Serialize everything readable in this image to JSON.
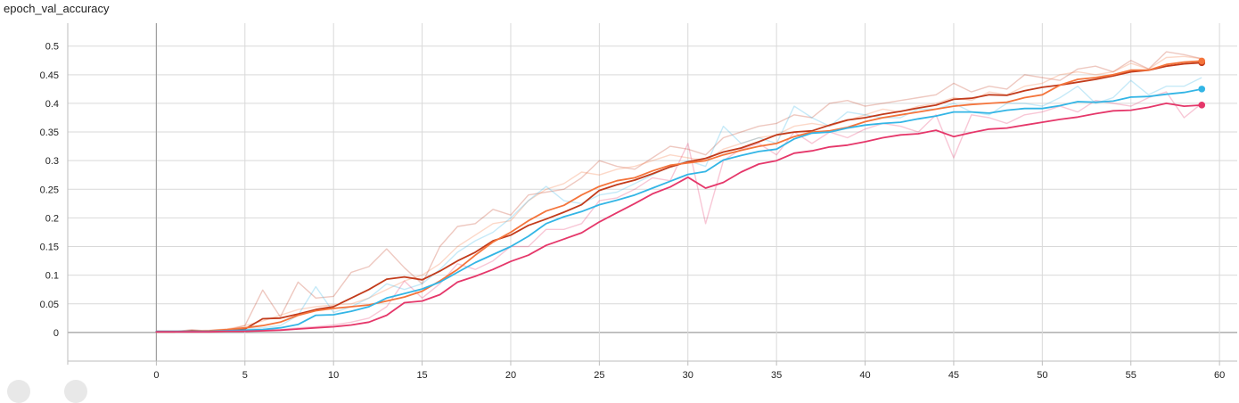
{
  "chart_data": {
    "type": "line",
    "title": "epoch_val_accuracy",
    "xlabel": "",
    "ylabel": "",
    "xlim": [
      -5,
      61
    ],
    "ylim": [
      -0.05,
      0.54
    ],
    "x_ticks": [
      0,
      5,
      10,
      15,
      20,
      25,
      30,
      35,
      40,
      45,
      50,
      55,
      60
    ],
    "y_ticks": [
      0,
      0.05,
      0.1,
      0.15,
      0.2,
      0.25,
      0.3,
      0.35,
      0.4,
      0.45,
      0.5
    ],
    "grid": true,
    "legend": "none",
    "x": [
      0,
      1,
      2,
      3,
      4,
      5,
      6,
      7,
      8,
      9,
      10,
      11,
      12,
      13,
      14,
      15,
      16,
      17,
      18,
      19,
      20,
      21,
      22,
      23,
      24,
      25,
      26,
      27,
      28,
      29,
      30,
      31,
      32,
      33,
      34,
      35,
      36,
      37,
      38,
      39,
      40,
      41,
      42,
      43,
      44,
      45,
      46,
      47,
      48,
      49,
      50,
      51,
      52,
      53,
      54,
      55,
      56,
      57,
      58,
      59
    ],
    "series": [
      {
        "color": "#c23b1b",
        "values": [
          0.001,
          0.001,
          0.003,
          0.002,
          0.003,
          0.006,
          0.024,
          0.025,
          0.032,
          0.04,
          0.045,
          0.06,
          0.075,
          0.093,
          0.097,
          0.092,
          0.107,
          0.125,
          0.14,
          0.16,
          0.17,
          0.187,
          0.198,
          0.21,
          0.223,
          0.248,
          0.258,
          0.266,
          0.277,
          0.289,
          0.298,
          0.304,
          0.315,
          0.322,
          0.333,
          0.345,
          0.35,
          0.352,
          0.362,
          0.371,
          0.375,
          0.381,
          0.386,
          0.392,
          0.397,
          0.407,
          0.409,
          0.415,
          0.414,
          0.422,
          0.428,
          0.432,
          0.437,
          0.442,
          0.448,
          0.455,
          0.458,
          0.465,
          0.469,
          0.471
        ],
        "raw": [
          0.001,
          0.001,
          0.005,
          0.002,
          0.004,
          0.012,
          0.074,
          0.027,
          0.088,
          0.06,
          0.063,
          0.105,
          0.115,
          0.146,
          0.113,
          0.085,
          0.15,
          0.185,
          0.19,
          0.215,
          0.205,
          0.24,
          0.245,
          0.25,
          0.27,
          0.3,
          0.29,
          0.285,
          0.305,
          0.325,
          0.32,
          0.31,
          0.34,
          0.35,
          0.36,
          0.365,
          0.38,
          0.375,
          0.4,
          0.405,
          0.395,
          0.4,
          0.405,
          0.41,
          0.415,
          0.435,
          0.42,
          0.43,
          0.425,
          0.45,
          0.445,
          0.44,
          0.46,
          0.465,
          0.455,
          0.475,
          0.46,
          0.49,
          0.485,
          0.478
        ]
      },
      {
        "color": "#f4743b",
        "values": [
          0.002,
          0.002,
          0.002,
          0.003,
          0.005,
          0.008,
          0.012,
          0.018,
          0.03,
          0.038,
          0.042,
          0.045,
          0.048,
          0.055,
          0.062,
          0.072,
          0.09,
          0.11,
          0.135,
          0.158,
          0.175,
          0.195,
          0.212,
          0.222,
          0.24,
          0.255,
          0.265,
          0.27,
          0.282,
          0.292,
          0.296,
          0.3,
          0.31,
          0.318,
          0.325,
          0.33,
          0.342,
          0.35,
          0.352,
          0.358,
          0.368,
          0.375,
          0.38,
          0.385,
          0.39,
          0.395,
          0.398,
          0.4,
          0.402,
          0.41,
          0.415,
          0.432,
          0.442,
          0.445,
          0.45,
          0.458,
          0.458,
          0.468,
          0.472,
          0.474
        ],
        "raw": [
          0.002,
          0.002,
          0.003,
          0.004,
          0.006,
          0.012,
          0.02,
          0.03,
          0.04,
          0.045,
          0.048,
          0.05,
          0.06,
          0.075,
          0.09,
          0.1,
          0.12,
          0.15,
          0.17,
          0.19,
          0.195,
          0.23,
          0.25,
          0.26,
          0.28,
          0.275,
          0.285,
          0.29,
          0.3,
          0.31,
          0.305,
          0.3,
          0.32,
          0.33,
          0.34,
          0.345,
          0.36,
          0.365,
          0.36,
          0.37,
          0.38,
          0.39,
          0.385,
          0.395,
          0.4,
          0.41,
          0.405,
          0.42,
          0.415,
          0.43,
          0.435,
          0.45,
          0.455,
          0.45,
          0.455,
          0.47,
          0.46,
          0.48,
          0.482,
          0.478
        ]
      },
      {
        "color": "#33b5e5",
        "values": [
          0.002,
          0.002,
          0.002,
          0.002,
          0.003,
          0.004,
          0.005,
          0.008,
          0.014,
          0.03,
          0.031,
          0.037,
          0.045,
          0.06,
          0.068,
          0.076,
          0.088,
          0.105,
          0.122,
          0.136,
          0.15,
          0.168,
          0.19,
          0.202,
          0.211,
          0.223,
          0.231,
          0.24,
          0.252,
          0.264,
          0.276,
          0.281,
          0.301,
          0.309,
          0.316,
          0.32,
          0.338,
          0.348,
          0.35,
          0.357,
          0.362,
          0.365,
          0.367,
          0.373,
          0.378,
          0.385,
          0.385,
          0.383,
          0.388,
          0.391,
          0.391,
          0.396,
          0.403,
          0.402,
          0.404,
          0.411,
          0.412,
          0.416,
          0.419,
          0.425
        ],
        "raw": [
          0.002,
          0.002,
          0.002,
          0.003,
          0.004,
          0.006,
          0.008,
          0.012,
          0.03,
          0.08,
          0.035,
          0.045,
          0.06,
          0.085,
          0.075,
          0.085,
          0.11,
          0.14,
          0.16,
          0.175,
          0.2,
          0.23,
          0.255,
          0.23,
          0.225,
          0.24,
          0.245,
          0.26,
          0.275,
          0.29,
          0.3,
          0.29,
          0.36,
          0.33,
          0.34,
          0.33,
          0.395,
          0.375,
          0.36,
          0.385,
          0.38,
          0.375,
          0.375,
          0.39,
          0.39,
          0.4,
          0.385,
          0.38,
          0.4,
          0.4,
          0.395,
          0.41,
          0.43,
          0.4,
          0.41,
          0.44,
          0.415,
          0.43,
          0.43,
          0.445
        ]
      },
      {
        "color": "#e5376a",
        "values": [
          0.001,
          0.001,
          0.001,
          0.001,
          0.002,
          0.002,
          0.003,
          0.004,
          0.006,
          0.008,
          0.01,
          0.013,
          0.018,
          0.03,
          0.052,
          0.055,
          0.066,
          0.088,
          0.098,
          0.11,
          0.124,
          0.135,
          0.152,
          0.163,
          0.174,
          0.193,
          0.209,
          0.225,
          0.242,
          0.254,
          0.271,
          0.252,
          0.262,
          0.28,
          0.294,
          0.3,
          0.313,
          0.317,
          0.324,
          0.327,
          0.333,
          0.34,
          0.345,
          0.347,
          0.353,
          0.342,
          0.349,
          0.355,
          0.357,
          0.362,
          0.367,
          0.372,
          0.376,
          0.382,
          0.387,
          0.388,
          0.393,
          0.4,
          0.395,
          0.397
        ],
        "raw": [
          0.001,
          0.001,
          0.001,
          0.001,
          0.002,
          0.002,
          0.003,
          0.005,
          0.008,
          0.01,
          0.013,
          0.018,
          0.025,
          0.045,
          0.09,
          0.06,
          0.085,
          0.12,
          0.11,
          0.125,
          0.15,
          0.15,
          0.18,
          0.18,
          0.19,
          0.23,
          0.235,
          0.25,
          0.27,
          0.265,
          0.33,
          0.19,
          0.3,
          0.32,
          0.33,
          0.31,
          0.35,
          0.33,
          0.35,
          0.34,
          0.355,
          0.365,
          0.36,
          0.35,
          0.38,
          0.305,
          0.38,
          0.375,
          0.365,
          0.38,
          0.385,
          0.395,
          0.385,
          0.405,
          0.4,
          0.395,
          0.41,
          0.42,
          0.375,
          0.4
        ]
      }
    ]
  }
}
